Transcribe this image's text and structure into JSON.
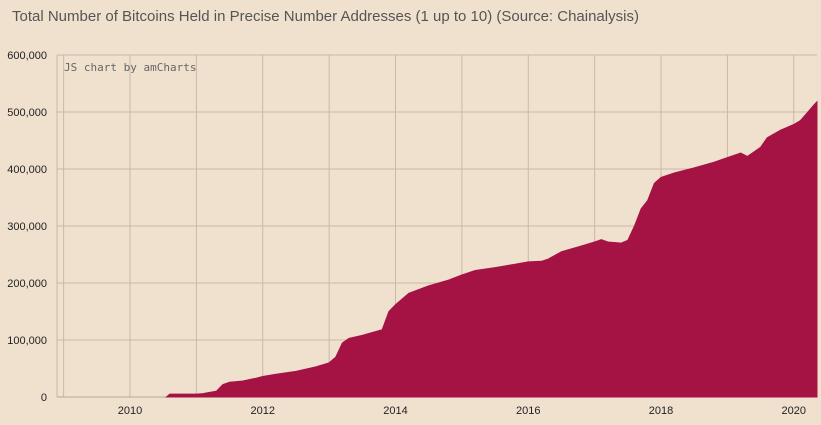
{
  "chart_data": {
    "type": "area",
    "title": "Total Number of Bitcoins Held in Precise Number Addresses (1 up to 10) (Source: Chainalysis)",
    "credit": "JS chart by amCharts",
    "xlabel": "",
    "ylabel": "",
    "x_ticks": [
      "2010",
      "2012",
      "2014",
      "2016",
      "2018",
      "2020"
    ],
    "y_ticks": [
      "0",
      "100,000",
      "200,000",
      "300,000",
      "400,000",
      "500,000",
      "600,000"
    ],
    "xlim": [
      2008.9,
      2020.35
    ],
    "ylim": [
      0,
      600000
    ],
    "grid": true,
    "colors": {
      "background": "#f0e1cf",
      "area": "#a51244",
      "grid": "#c9b8a4"
    },
    "series": [
      {
        "x": [
          2010.55,
          2010.6,
          2011.0,
          2011.1,
          2011.2,
          2011.3,
          2011.4,
          2011.5,
          2011.7,
          2011.9,
          2012.0,
          2012.2,
          2012.5,
          2012.8,
          2013.0,
          2013.1,
          2013.2,
          2013.3,
          2013.5,
          2013.8,
          2013.9,
          2014.0,
          2014.2,
          2014.5,
          2014.8,
          2015.0,
          2015.2,
          2015.5,
          2015.8,
          2016.0,
          2016.2,
          2016.3,
          2016.5,
          2016.8,
          2017.0,
          2017.1,
          2017.2,
          2017.4,
          2017.5,
          2017.6,
          2017.7,
          2017.8,
          2017.9,
          2018.0,
          2018.2,
          2018.5,
          2018.8,
          2019.0,
          2019.2,
          2019.3,
          2019.5,
          2019.6,
          2019.8,
          2020.0,
          2020.1,
          2020.2,
          2020.3,
          2020.35
        ],
        "values": [
          0,
          5000,
          5000,
          6000,
          8000,
          10000,
          22000,
          26000,
          28000,
          33000,
          36000,
          40000,
          45000,
          53000,
          60000,
          70000,
          95000,
          103000,
          108000,
          118000,
          150000,
          162000,
          182000,
          195000,
          205000,
          214000,
          222000,
          227000,
          233000,
          237000,
          238000,
          242000,
          255000,
          265000,
          272000,
          276000,
          272000,
          270000,
          275000,
          300000,
          330000,
          345000,
          375000,
          385000,
          393000,
          402000,
          412000,
          420000,
          428000,
          422000,
          438000,
          455000,
          468000,
          478000,
          485000,
          498000,
          512000,
          518000
        ]
      }
    ]
  }
}
